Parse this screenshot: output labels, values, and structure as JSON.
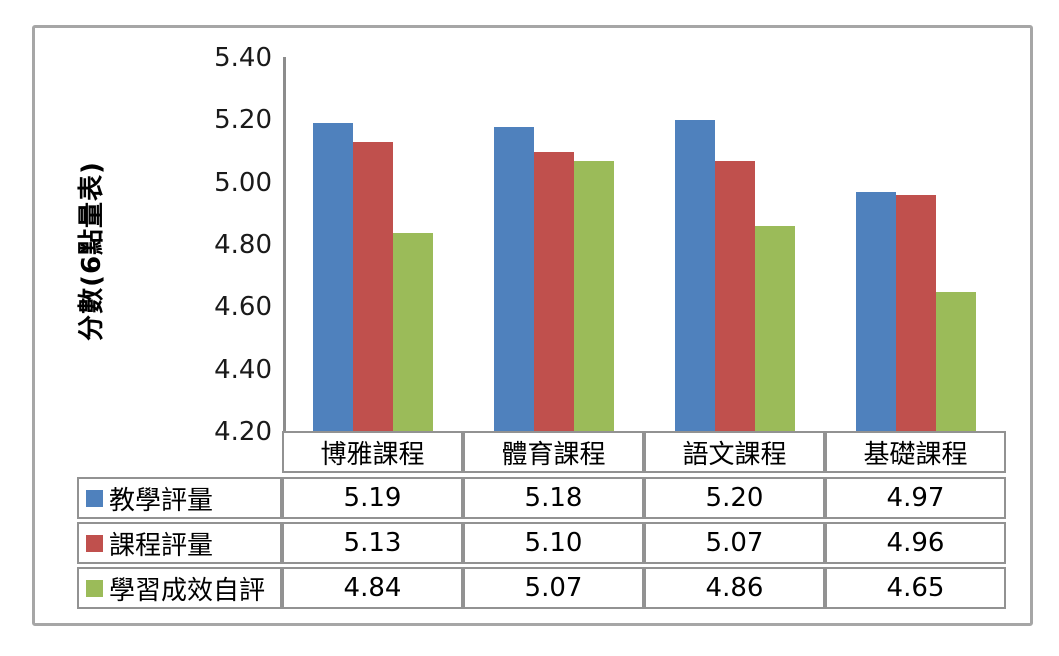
{
  "chart_data": {
    "type": "bar",
    "title": "",
    "xlabel": "",
    "ylabel": "分數(6點量表)",
    "categories": [
      "博雅課程",
      "體育課程",
      "語文課程",
      "基礎課程"
    ],
    "series": [
      {
        "name": "教學評量",
        "color": "#4f81bd",
        "values": [
          5.19,
          5.18,
          5.2,
          4.97
        ]
      },
      {
        "name": "課程評量",
        "color": "#c0504d",
        "values": [
          5.13,
          5.1,
          5.07,
          4.96
        ]
      },
      {
        "name": "學習成效自評",
        "color": "#9bbb59",
        "values": [
          4.84,
          5.07,
          4.86,
          4.65
        ]
      }
    ],
    "ylim": [
      4.2,
      5.4
    ],
    "ytick_step": 0.2,
    "yticks": [
      "5.40",
      "5.20",
      "5.00",
      "4.80",
      "4.60",
      "4.40",
      "4.20"
    ],
    "grid": false,
    "legend_position": "left-of-data-table",
    "data_table_shown": true,
    "value_decimals": 2
  },
  "colors": {
    "frame_border": "#a6a6a6",
    "axis_line": "#8c8c8c",
    "table_border": "#929292",
    "text": "#000000"
  }
}
